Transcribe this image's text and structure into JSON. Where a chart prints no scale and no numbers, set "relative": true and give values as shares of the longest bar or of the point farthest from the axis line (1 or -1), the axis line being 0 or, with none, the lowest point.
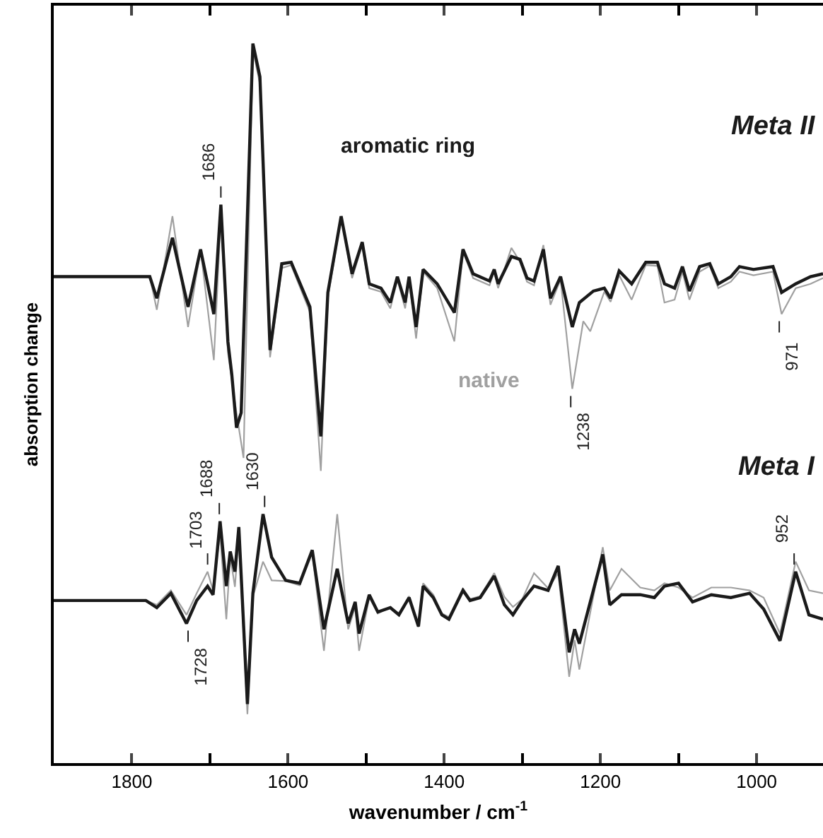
{
  "chart_data": {
    "type": "line",
    "relative": true,
    "xlabel": "wavenumber / cm$^{-1}$",
    "ylabel": "absorption change",
    "xlim": [
      1900,
      915
    ],
    "xticks": [
      1800,
      {
        "value": 1700,
        "label": null
      },
      1600,
      {
        "value": 1500,
        "label": null
      },
      1400,
      {
        "value": 1300,
        "label": null
      },
      1200,
      {
        "value": 1100,
        "label": null
      },
      1000
    ],
    "grid": false,
    "marker": "none",
    "line_style": "solid",
    "series": [
      {
        "color": "#1a1a1a",
        "x": [
          1900,
          1777,
          1768,
          1748,
          1728,
          1712,
          1695,
          1686,
          1677,
          1672,
          1666,
          1660,
          1645,
          1636,
          1623,
          1608,
          1596,
          1572,
          1558,
          1549,
          1532,
          1518,
          1505,
          1496,
          1481,
          1469,
          1460,
          1450,
          1445,
          1436,
          1427,
          1409,
          1387,
          1376,
          1363,
          1342,
          1336,
          1331,
          1314,
          1303,
          1294,
          1285,
          1273,
          1264,
          1251,
          1236,
          1227,
          1209,
          1195,
          1187,
          1176,
          1160,
          1142,
          1127,
          1118,
          1105,
          1095,
          1086,
          1073,
          1060,
          1049,
          1033,
          1022,
          1004,
          979,
          968,
          950,
          931,
          915
        ],
        "values": [
          0.676,
          0.676,
          0.646,
          0.73,
          0.634,
          0.714,
          0.624,
          0.776,
          0.586,
          0.54,
          0.466,
          0.487,
          1.0,
          0.954,
          0.574,
          0.694,
          0.696,
          0.634,
          0.454,
          0.654,
          0.76,
          0.68,
          0.724,
          0.666,
          0.66,
          0.64,
          0.676,
          0.64,
          0.676,
          0.606,
          0.686,
          0.666,
          0.626,
          0.714,
          0.68,
          0.67,
          0.686,
          0.666,
          0.704,
          0.7,
          0.674,
          0.67,
          0.714,
          0.646,
          0.676,
          0.606,
          0.64,
          0.656,
          0.66,
          0.646,
          0.684,
          0.666,
          0.696,
          0.696,
          0.666,
          0.66,
          0.69,
          0.656,
          0.69,
          0.694,
          0.666,
          0.676,
          0.69,
          0.686,
          0.69,
          0.654,
          0.666,
          0.676,
          0.68
        ]
      },
      {
        "color": "#a0a0a0",
        "x": [
          1900,
          1777,
          1768,
          1748,
          1728,
          1712,
          1695,
          1686,
          1677,
          1666,
          1657,
          1645,
          1636,
          1623,
          1608,
          1596,
          1572,
          1558,
          1549,
          1532,
          1518,
          1505,
          1496,
          1481,
          1469,
          1460,
          1450,
          1445,
          1436,
          1427,
          1409,
          1387,
          1376,
          1363,
          1342,
          1336,
          1331,
          1314,
          1303,
          1294,
          1285,
          1273,
          1264,
          1251,
          1236,
          1222,
          1213,
          1195,
          1187,
          1176,
          1160,
          1142,
          1127,
          1118,
          1105,
          1095,
          1086,
          1073,
          1060,
          1049,
          1033,
          1022,
          1004,
          979,
          968,
          950,
          931,
          915
        ],
        "values": [
          0.676,
          0.676,
          0.63,
          0.76,
          0.606,
          0.714,
          0.56,
          0.76,
          0.571,
          0.487,
          0.424,
          0.991,
          0.944,
          0.564,
          0.688,
          0.692,
          0.627,
          0.406,
          0.646,
          0.758,
          0.674,
          0.72,
          0.66,
          0.655,
          0.632,
          0.672,
          0.632,
          0.672,
          0.59,
          0.683,
          0.66,
          0.586,
          0.711,
          0.674,
          0.664,
          0.683,
          0.66,
          0.716,
          0.697,
          0.669,
          0.664,
          0.72,
          0.637,
          0.672,
          0.52,
          0.614,
          0.6,
          0.655,
          0.641,
          0.678,
          0.644,
          0.692,
          0.691,
          0.64,
          0.644,
          0.683,
          0.644,
          0.683,
          0.691,
          0.66,
          0.669,
          0.683,
          0.678,
          0.683,
          0.624,
          0.66,
          0.666,
          0.674
        ]
      },
      {
        "color": "#1a1a1a",
        "x": [
          1900,
          1782,
          1768,
          1750,
          1730,
          1717,
          1703,
          1696,
          1687,
          1679,
          1674,
          1668,
          1663,
          1652,
          1645,
          1632,
          1621,
          1603,
          1585,
          1569,
          1554,
          1537,
          1523,
          1514,
          1509,
          1496,
          1485,
          1469,
          1458,
          1445,
          1433,
          1427,
          1414,
          1403,
          1394,
          1376,
          1367,
          1354,
          1336,
          1323,
          1312,
          1300,
          1285,
          1267,
          1254,
          1240,
          1233,
          1227,
          1197,
          1188,
          1173,
          1149,
          1131,
          1118,
          1100,
          1082,
          1058,
          1033,
          1009,
          991,
          970,
          950,
          933,
          915
        ],
        "values": [
          0.226,
          0.226,
          0.216,
          0.236,
          0.194,
          0.226,
          0.246,
          0.234,
          0.336,
          0.246,
          0.294,
          0.266,
          0.328,
          0.082,
          0.236,
          0.346,
          0.286,
          0.254,
          0.25,
          0.296,
          0.186,
          0.27,
          0.194,
          0.224,
          0.18,
          0.234,
          0.21,
          0.216,
          0.206,
          0.23,
          0.19,
          0.246,
          0.23,
          0.206,
          0.2,
          0.24,
          0.226,
          0.23,
          0.26,
          0.22,
          0.206,
          0.226,
          0.246,
          0.24,
          0.274,
          0.154,
          0.186,
          0.166,
          0.29,
          0.22,
          0.234,
          0.234,
          0.23,
          0.246,
          0.25,
          0.224,
          0.234,
          0.23,
          0.236,
          0.214,
          0.17,
          0.266,
          0.206,
          0.2
        ]
      },
      {
        "color": "#a0a0a0",
        "x": [
          1900,
          1782,
          1768,
          1750,
          1730,
          1717,
          1703,
          1696,
          1687,
          1679,
          1674,
          1668,
          1663,
          1652,
          1645,
          1632,
          1621,
          1603,
          1585,
          1569,
          1554,
          1537,
          1523,
          1514,
          1509,
          1496,
          1485,
          1469,
          1458,
          1445,
          1433,
          1427,
          1414,
          1403,
          1394,
          1376,
          1367,
          1354,
          1336,
          1323,
          1312,
          1300,
          1285,
          1267,
          1254,
          1240,
          1233,
          1227,
          1197,
          1188,
          1173,
          1149,
          1131,
          1118,
          1100,
          1082,
          1058,
          1033,
          1009,
          991,
          970,
          950,
          933,
          915
        ],
        "values": [
          0.226,
          0.226,
          0.22,
          0.24,
          0.206,
          0.236,
          0.266,
          0.24,
          0.32,
          0.2,
          0.287,
          0.245,
          0.315,
          0.068,
          0.231,
          0.28,
          0.254,
          0.253,
          0.247,
          0.292,
          0.156,
          0.346,
          0.186,
          0.217,
          0.156,
          0.231,
          0.208,
          0.217,
          0.208,
          0.232,
          0.189,
          0.25,
          0.234,
          0.208,
          0.203,
          0.243,
          0.228,
          0.232,
          0.264,
          0.231,
          0.217,
          0.228,
          0.264,
          0.243,
          0.264,
          0.12,
          0.171,
          0.13,
          0.3,
          0.24,
          0.27,
          0.244,
          0.24,
          0.25,
          0.244,
          0.23,
          0.244,
          0.244,
          0.24,
          0.23,
          0.18,
          0.28,
          0.24,
          0.236
        ]
      }
    ],
    "annotations": [
      "Meta II",
      "aromatic ring",
      "native",
      "Meta I",
      {
        "text": "1686",
        "x": 1686,
        "y": 0.776
      },
      {
        "text": "1238",
        "x": 1238,
        "y": 0.52
      },
      {
        "text": "971",
        "x": 971,
        "y": 0.624
      },
      {
        "text": "1703",
        "x": 1703,
        "y": 0.266
      },
      {
        "text": "1688",
        "x": 1688,
        "y": 0.336
      },
      {
        "text": "1630",
        "x": 1630,
        "y": 0.346
      },
      {
        "text": "1728",
        "x": 1728,
        "y": 0.194
      },
      {
        "text": "952",
        "x": 952,
        "y": 0.266
      }
    ]
  }
}
